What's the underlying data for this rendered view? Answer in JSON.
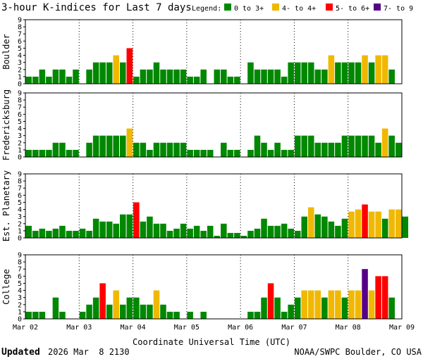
{
  "chart_data": {
    "type": "bar",
    "title": "3-hour K-indices for Last 7 days",
    "legend": {
      "label": "Legend:",
      "placement": "top-right",
      "items": [
        {
          "label": "0 to 3+",
          "color": "#008800"
        },
        {
          "label": "4- to 4+",
          "color": "#f0b800"
        },
        {
          "label": "5- to 6+",
          "color": "#ff0000"
        },
        {
          "label": "7- to 9",
          "color": "#550088"
        }
      ]
    },
    "xlabel": "Coordinate Universal Time (UTC)",
    "x_ticks": [
      "Mar 02",
      "Mar 03",
      "Mar 04",
      "Mar 05",
      "Mar 06",
      "Mar 07",
      "Mar 08",
      "Mar 09"
    ],
    "ylim": [
      0,
      9
    ],
    "y_ticks": [
      "0",
      "1",
      "2",
      "3",
      "4",
      "5",
      "6",
      "7",
      "8",
      "9"
    ],
    "grid": "dotted",
    "bins_per_day": 8,
    "panels": [
      {
        "name": "Boulder",
        "values": [
          1,
          1,
          2,
          1,
          2,
          2,
          1,
          2,
          0,
          2,
          3,
          3,
          3,
          4,
          3,
          5,
          1,
          2,
          2,
          3,
          2,
          2,
          2,
          2,
          1,
          1,
          2,
          0,
          2,
          2,
          1,
          1,
          0,
          3,
          2,
          2,
          2,
          2,
          1,
          3,
          3,
          3,
          3,
          2,
          2,
          4,
          3,
          3,
          3,
          3,
          4,
          3,
          4,
          4,
          2,
          0
        ]
      },
      {
        "name": "Fredericksburg",
        "values": [
          1,
          1,
          1,
          1,
          2,
          2,
          1,
          1,
          0,
          2,
          3,
          3,
          3,
          3,
          3,
          4,
          2,
          2,
          1,
          2,
          2,
          2,
          2,
          2,
          1,
          1,
          1,
          1,
          0,
          2,
          1,
          1,
          0,
          1,
          3,
          2,
          1,
          2,
          1,
          1,
          3,
          3,
          3,
          2,
          2,
          2,
          2,
          3,
          3,
          3,
          3,
          3,
          2,
          4,
          3,
          2,
          0
        ]
      },
      {
        "name": "Est. Planetary",
        "values": [
          1.7,
          1,
          1.3,
          1,
          1.3,
          1.7,
          1,
          1,
          1.3,
          1,
          2.7,
          2.3,
          2.3,
          2,
          3.3,
          3.3,
          5,
          2.3,
          3,
          2,
          2,
          1,
          1.3,
          2,
          1.3,
          1.7,
          1,
          1.7,
          0.3,
          2,
          0.7,
          0.7,
          0.3,
          1,
          1.3,
          2.7,
          1.7,
          1.7,
          2,
          1.3,
          1,
          3,
          4.3,
          3.3,
          3,
          2.3,
          1.7,
          2.7,
          3.7,
          4,
          4.7,
          3.7,
          3.7,
          2.7,
          4,
          4,
          3,
          0
        ]
      },
      {
        "name": "College",
        "values": [
          1,
          1,
          1,
          0,
          3,
          1,
          0,
          0,
          1,
          2,
          3,
          5,
          2,
          4,
          2,
          3,
          3,
          2,
          2,
          4,
          2,
          1,
          1,
          0,
          1,
          0,
          1,
          0,
          0,
          0,
          0,
          0,
          0,
          1,
          1,
          3,
          5,
          3,
          1,
          2,
          3,
          4,
          4,
          4,
          3,
          4,
          4,
          3,
          4,
          4,
          7,
          4,
          6,
          6,
          3,
          0
        ]
      }
    ]
  },
  "footer": {
    "updated_label": "Updated",
    "updated_value": "2026 Mar  8 2130",
    "source": "NOAA/SWPC Boulder, CO USA"
  }
}
